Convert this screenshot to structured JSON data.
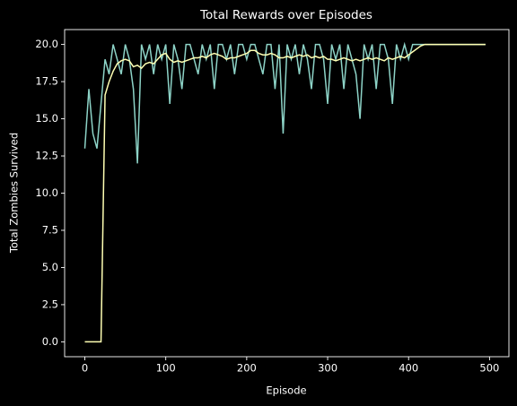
{
  "chart_data": {
    "type": "line",
    "title": "Total Rewards over Episodes",
    "x_label": "Episode",
    "y_label": "Total Zombies Survived",
    "x": [
      0,
      5,
      10,
      15,
      20,
      25,
      30,
      35,
      40,
      45,
      50,
      55,
      60,
      65,
      70,
      75,
      80,
      85,
      90,
      95,
      100,
      105,
      110,
      115,
      120,
      125,
      130,
      135,
      140,
      145,
      150,
      155,
      160,
      165,
      170,
      175,
      180,
      185,
      190,
      195,
      200,
      205,
      210,
      215,
      220,
      225,
      230,
      235,
      240,
      245,
      250,
      255,
      260,
      265,
      270,
      275,
      280,
      285,
      290,
      295,
      300,
      305,
      310,
      315,
      320,
      325,
      330,
      335,
      340,
      345,
      350,
      355,
      360,
      365,
      370,
      375,
      380,
      385,
      390,
      395,
      400,
      405,
      410,
      415,
      420,
      425,
      430,
      435,
      440,
      445,
      450,
      455,
      460,
      465,
      470,
      475,
      480,
      485,
      490,
      495
    ],
    "series": [
      {
        "color": "#8dd3c7",
        "values": [
          13,
          17,
          14,
          13,
          16,
          19,
          18,
          20,
          19,
          18,
          20,
          19,
          17,
          12,
          20,
          19,
          20,
          18,
          20,
          19,
          20,
          16,
          20,
          19,
          17,
          20,
          20,
          19,
          18,
          20,
          19,
          20,
          17,
          20,
          20,
          19,
          20,
          18,
          20,
          20,
          19,
          20,
          20,
          19,
          18,
          20,
          20,
          17,
          20,
          14,
          20,
          19,
          20,
          18,
          20,
          19,
          17,
          20,
          20,
          19,
          16,
          20,
          19,
          20,
          17,
          20,
          19,
          18,
          15,
          20,
          19,
          20,
          17,
          20,
          20,
          19,
          16,
          20,
          19,
          20,
          19,
          20,
          20,
          20,
          20,
          20,
          20,
          20,
          20,
          20,
          20,
          20,
          20,
          20,
          20,
          20,
          20,
          20,
          20,
          20
        ]
      },
      {
        "color": "#ffffb3",
        "values": [
          0,
          0,
          0,
          0,
          0,
          16.6,
          17.5,
          18.2,
          18.7,
          18.9,
          19.0,
          18.9,
          18.5,
          18.6,
          18.4,
          18.7,
          18.8,
          18.7,
          19.0,
          19.3,
          19.4,
          19.0,
          18.8,
          18.9,
          18.8,
          18.9,
          19.0,
          19.1,
          19.1,
          19.2,
          19.1,
          19.3,
          19.4,
          19.3,
          19.2,
          19.0,
          19.1,
          19.1,
          19.2,
          19.3,
          19.4,
          19.6,
          19.6,
          19.4,
          19.3,
          19.3,
          19.4,
          19.3,
          19.1,
          19.1,
          19.2,
          19.1,
          19.2,
          19.3,
          19.2,
          19.3,
          19.1,
          19.2,
          19.1,
          19.2,
          19.0,
          19.0,
          18.9,
          19.0,
          19.1,
          19.0,
          18.9,
          19.0,
          18.9,
          19.0,
          19.1,
          19.0,
          19.1,
          19.0,
          18.9,
          19.1,
          19.0,
          19.1,
          19.2,
          19.1,
          19.3,
          19.5,
          19.7,
          19.9,
          20,
          20,
          20,
          20,
          20,
          20,
          20,
          20,
          20,
          20,
          20,
          20,
          20,
          20,
          20,
          20
        ]
      }
    ],
    "xlim": [
      -24.95,
      523.95
    ],
    "xticks": [
      0,
      100,
      200,
      300,
      400,
      500
    ],
    "ylim": [
      -1,
      21
    ],
    "yticks": [
      {
        "value": 0,
        "label": "0.0"
      },
      {
        "value": 2.5,
        "label": "2.5"
      },
      {
        "value": 5,
        "label": "5.0"
      },
      {
        "value": 7.5,
        "label": "7.5"
      },
      {
        "value": 10,
        "label": "10.0"
      },
      {
        "value": 12.5,
        "label": "12.5"
      },
      {
        "value": 15,
        "label": "15.0"
      },
      {
        "value": 17.5,
        "label": "17.5"
      },
      {
        "value": 20,
        "label": "20.0"
      }
    ]
  }
}
